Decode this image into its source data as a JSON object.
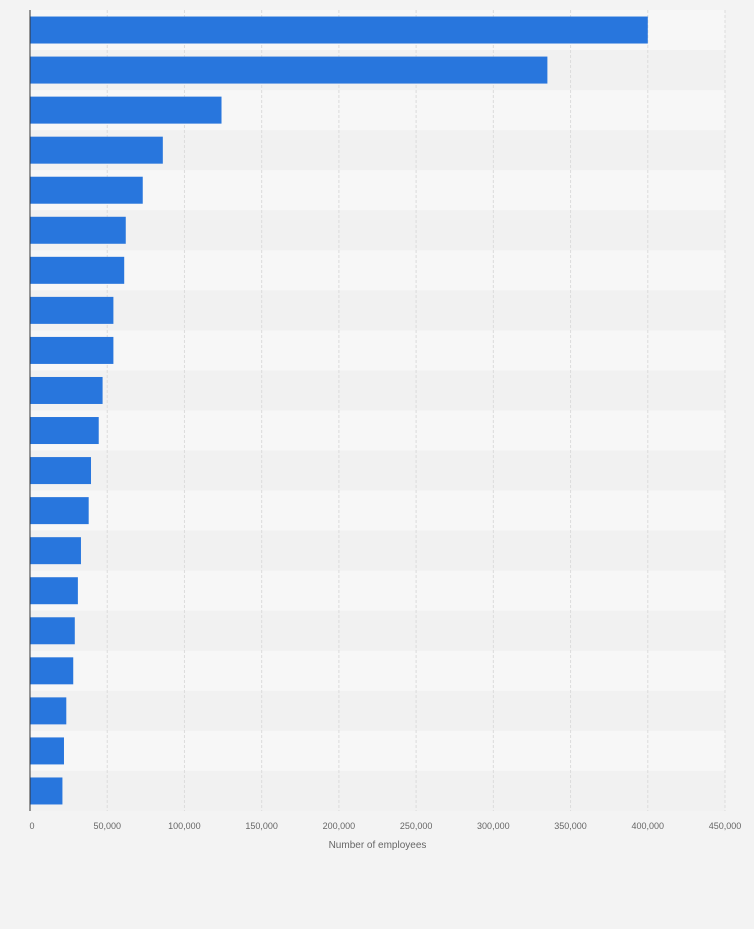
{
  "chart_data": {
    "type": "bar",
    "orientation": "horizontal",
    "title": "",
    "xlabel": "Number of employees",
    "ylabel": "",
    "xlim": [
      0,
      450000
    ],
    "x_ticks": [
      0,
      50000,
      100000,
      150000,
      200000,
      250000,
      300000,
      350000,
      400000,
      450000
    ],
    "x_tick_labels": [
      "0",
      "50,000",
      "100,000",
      "150,000",
      "200,000",
      "250,000",
      "300,000",
      "350,000",
      "400,000",
      "450,000"
    ],
    "categories": [
      "",
      "",
      "",
      "",
      "",
      "",
      "",
      "",
      "",
      "",
      "",
      "",
      "",
      "",
      "",
      "",
      "",
      "",
      "",
      ""
    ],
    "values": [
      400000,
      335000,
      124000,
      86000,
      73000,
      62000,
      61000,
      54000,
      54000,
      47000,
      44500,
      39500,
      38000,
      33000,
      31000,
      29000,
      28000,
      23500,
      22000,
      21000
    ],
    "grid": true,
    "legend": "none",
    "colors": {
      "bar": "#2876dd",
      "band_light": "#f7f7f7",
      "band_dark": "#f1f1f1",
      "grid": "#dcdcdc",
      "axis": "#333333",
      "background": "#f3f3f3"
    }
  }
}
